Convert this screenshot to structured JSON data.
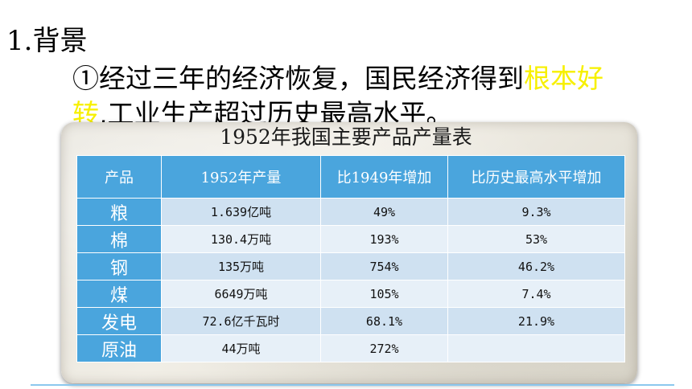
{
  "heading": "1.背景",
  "paragraph": {
    "prefix": "①经过三年的经济恢复，国民经济得到",
    "highlight": "根本好转",
    "suffix": ",工业生产超过历史最高水平。"
  },
  "table": {
    "title": "1952年我国主要产品产量表",
    "headers": [
      "产品",
      "1952年产量",
      "比1949年增加",
      "比历史最高水平增加"
    ],
    "rows": [
      {
        "product": "粮",
        "output": "1.639亿吨",
        "vs1949": "49%",
        "vs_record": "9.3%"
      },
      {
        "product": "棉",
        "output": "130.4万吨",
        "vs1949": "193%",
        "vs_record": "53%"
      },
      {
        "product": "钢",
        "output": "135万吨",
        "vs1949": "754%",
        "vs_record": "46.2%"
      },
      {
        "product": "煤",
        "output": "6649万吨",
        "vs1949": "105%",
        "vs_record": "7.4%"
      },
      {
        "product": "发电",
        "output": "72.6亿千瓦时",
        "vs1949": "68.1%",
        "vs_record": "21.9%"
      },
      {
        "product": "原油",
        "output": "44万吨",
        "vs1949": "272%",
        "vs_record": ""
      }
    ]
  },
  "colors": {
    "highlight_text": "#f7f000",
    "table_header": "#4aa5dd",
    "row_odd": "#cfe1f1",
    "row_even": "#e7f0f8"
  }
}
